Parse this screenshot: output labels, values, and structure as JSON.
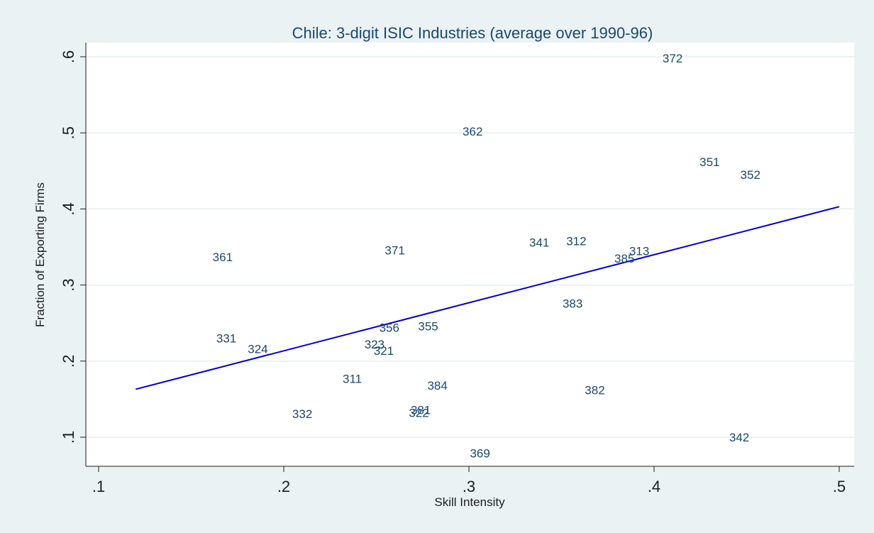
{
  "chart_data": {
    "type": "scatter",
    "title": "Chile: 3-digit ISIC Industries (average over 1990-96)",
    "xlabel": "Skill Intensity",
    "ylabel": "Fraction of Exporting Firms",
    "xlim": [
      0.1,
      0.5
    ],
    "ylim": [
      0.1,
      0.6
    ],
    "x_ticks": [
      ".1",
      ".2",
      ".3",
      ".4",
      ".5"
    ],
    "y_ticks": [
      ".1",
      ".2",
      ".3",
      ".4",
      ".5",
      ".6"
    ],
    "grid": true,
    "points": [
      {
        "label": "372",
        "x": 0.41,
        "y": 0.598
      },
      {
        "label": "362",
        "x": 0.302,
        "y": 0.502
      },
      {
        "label": "351",
        "x": 0.43,
        "y": 0.462
      },
      {
        "label": "352",
        "x": 0.452,
        "y": 0.445
      },
      {
        "label": "361",
        "x": 0.167,
        "y": 0.337
      },
      {
        "label": "371",
        "x": 0.26,
        "y": 0.346
      },
      {
        "label": "341",
        "x": 0.338,
        "y": 0.356
      },
      {
        "label": "312",
        "x": 0.358,
        "y": 0.358
      },
      {
        "label": "313",
        "x": 0.392,
        "y": 0.345
      },
      {
        "label": "385",
        "x": 0.384,
        "y": 0.335
      },
      {
        "label": "383",
        "x": 0.356,
        "y": 0.276
      },
      {
        "label": "331",
        "x": 0.169,
        "y": 0.23
      },
      {
        "label": "324",
        "x": 0.186,
        "y": 0.216
      },
      {
        "label": "356",
        "x": 0.257,
        "y": 0.244
      },
      {
        "label": "355",
        "x": 0.278,
        "y": 0.246
      },
      {
        "label": "323",
        "x": 0.249,
        "y": 0.222
      },
      {
        "label": "321",
        "x": 0.254,
        "y": 0.214
      },
      {
        "label": "311",
        "x": 0.237,
        "y": 0.177
      },
      {
        "label": "384",
        "x": 0.283,
        "y": 0.168
      },
      {
        "label": "382",
        "x": 0.368,
        "y": 0.162
      },
      {
        "label": "332",
        "x": 0.21,
        "y": 0.131
      },
      {
        "label": "381",
        "x": 0.274,
        "y": 0.136
      },
      {
        "label": "322",
        "x": 0.273,
        "y": 0.132
      },
      {
        "label": "342",
        "x": 0.446,
        "y": 0.1
      },
      {
        "label": "369",
        "x": 0.306,
        "y": 0.079
      }
    ],
    "fit_line": {
      "x": [
        0.12,
        0.5
      ],
      "y": [
        0.163,
        0.403
      ]
    },
    "colors": {
      "background": "#eaf2f3",
      "plot_area": "#ffffff",
      "grid": "#eaf2f3",
      "labels": "#1a476f",
      "fit_line": "#0000cc",
      "text": "#1c1c1c"
    }
  }
}
